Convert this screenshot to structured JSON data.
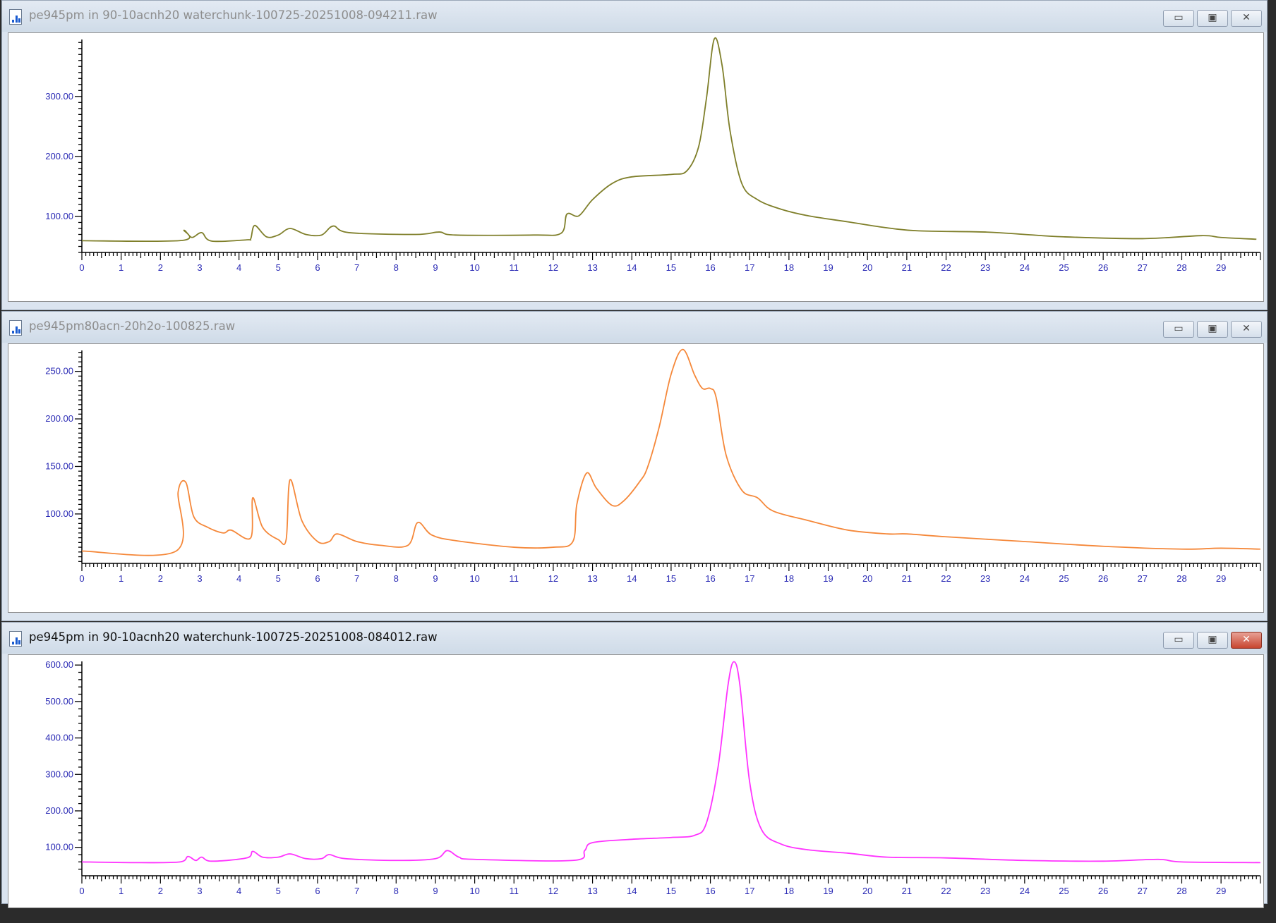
{
  "windows": [
    {
      "title": "pe945pm in 90-10acnh20 waterchunk-100725-20251008-094211.raw",
      "active": false
    },
    {
      "title": "pe945pm80acn-20h2o-100825.raw",
      "active": false
    },
    {
      "title": "pe945pm in 90-10acnh20 waterchunk-100725-20251008-084012.raw",
      "active": true
    }
  ],
  "buttons": {
    "minimize": "▭",
    "maximize": "▣",
    "close": "✕"
  },
  "colors": {
    "axis_labels": "#2b2bb5",
    "titlebar": "#dbe4ef",
    "close_active": "#c8452f"
  },
  "chart_data": [
    {
      "type": "line",
      "color": "#7f7f2a",
      "xlim": [
        0,
        30
      ],
      "ylim": [
        40,
        395
      ],
      "xticks": [
        0,
        1,
        2,
        3,
        4,
        5,
        6,
        7,
        8,
        9,
        10,
        11,
        12,
        13,
        14,
        15,
        16,
        17,
        18,
        19,
        20,
        21,
        22,
        23,
        24,
        25,
        26,
        27,
        28,
        29
      ],
      "yticks": [
        100,
        200,
        300
      ],
      "ytick_labels": [
        "100.00",
        "200.00",
        "300.00"
      ],
      "yminor": 10,
      "x": [
        0,
        2.55,
        2.6,
        2.8,
        3.05,
        3.3,
        4.2,
        4.3,
        4.4,
        4.7,
        5.0,
        5.3,
        5.7,
        6.1,
        6.4,
        6.8,
        8.5,
        9.1,
        9.5,
        11.5,
        12.2,
        12.35,
        12.65,
        13.0,
        13.5,
        14.0,
        15.0,
        15.4,
        15.7,
        15.9,
        16.1,
        16.3,
        16.5,
        16.8,
        17.2,
        17.8,
        18.5,
        19.5,
        20.5,
        21.3,
        23,
        24,
        25,
        27,
        28.5,
        29,
        29.9
      ],
      "y": [
        59.5,
        60,
        77,
        65,
        73,
        59,
        61,
        63,
        85,
        66,
        69,
        80,
        70,
        69,
        84,
        73,
        70,
        74,
        69,
        69,
        72,
        104,
        101,
        128,
        155,
        166,
        170,
        176,
        216,
        297,
        396,
        351,
        243,
        155,
        128,
        112,
        101,
        91,
        81,
        76,
        74,
        70,
        66,
        63,
        68,
        65,
        62
      ]
    },
    {
      "type": "line",
      "color": "#f5883a",
      "xlim": [
        0,
        30
      ],
      "ylim": [
        48,
        272
      ],
      "xticks": [
        0,
        1,
        2,
        3,
        4,
        5,
        6,
        7,
        8,
        9,
        10,
        11,
        12,
        13,
        14,
        15,
        16,
        17,
        18,
        19,
        20,
        21,
        22,
        23,
        24,
        25,
        26,
        27,
        28,
        29
      ],
      "yticks": [
        100,
        150,
        200,
        250
      ],
      "ytick_labels": [
        "100.00",
        "150.00",
        "200.00",
        "250.00"
      ],
      "yminor": 5,
      "x": [
        0,
        2.4,
        2.45,
        2.65,
        2.85,
        3.2,
        3.6,
        3.8,
        4.3,
        4.35,
        4.6,
        5.0,
        5.2,
        5.3,
        5.6,
        6.0,
        6.3,
        6.5,
        7.0,
        7.6,
        8.3,
        8.55,
        8.9,
        9.5,
        11,
        12.0,
        12.5,
        12.6,
        12.85,
        13.1,
        13.5,
        13.8,
        14.2,
        14.4,
        14.7,
        15.0,
        15.3,
        15.6,
        15.8,
        16.0,
        16.15,
        16.4,
        16.8,
        17.2,
        17.6,
        18.5,
        19.5,
        20.5,
        21.0,
        22,
        24,
        26,
        28,
        29,
        30
      ],
      "y": [
        61,
        61,
        123,
        133,
        97,
        86,
        80,
        83,
        75,
        117,
        86,
        73,
        73,
        136,
        93,
        71,
        71,
        79,
        71,
        67,
        67,
        91,
        78,
        72,
        65,
        65,
        71,
        110,
        143,
        127,
        109,
        114,
        134,
        149,
        192,
        247,
        273,
        246,
        232,
        232,
        222,
        162,
        125,
        117,
        103,
        93,
        83,
        79,
        79,
        76,
        71,
        66,
        63,
        64,
        63
      ]
    },
    {
      "type": "line",
      "color": "#ff33ff",
      "xlim": [
        0,
        30
      ],
      "ylim": [
        22,
        610
      ],
      "xticks": [
        0,
        1,
        2,
        3,
        4,
        5,
        6,
        7,
        8,
        9,
        10,
        11,
        12,
        13,
        14,
        15,
        16,
        17,
        18,
        19,
        20,
        21,
        22,
        23,
        24,
        25,
        26,
        27,
        28,
        29
      ],
      "yticks": [
        100,
        200,
        300,
        400,
        500,
        600
      ],
      "ytick_labels": [
        "100.00",
        "200.00",
        "300.00",
        "400.00",
        "500.00",
        "600.00"
      ],
      "yminor": 20,
      "x": [
        0,
        1.5,
        2.5,
        2.7,
        2.9,
        3.05,
        3.3,
        4.2,
        4.35,
        4.6,
        5.0,
        5.3,
        5.7,
        6.1,
        6.3,
        6.7,
        8,
        9.0,
        9.3,
        9.6,
        10,
        12.5,
        12.8,
        13.0,
        14,
        15,
        15.6,
        15.9,
        16.2,
        16.45,
        16.6,
        16.75,
        17.0,
        17.3,
        17.8,
        18.5,
        19.5,
        20.5,
        22,
        24,
        26,
        27.4,
        28,
        30
      ],
      "y": [
        60,
        58,
        60,
        75,
        64,
        73,
        62,
        71,
        89,
        73,
        73,
        82,
        69,
        69,
        80,
        69,
        64,
        69,
        91,
        73,
        67,
        64,
        91,
        113,
        122,
        127,
        133,
        167,
        323,
        546,
        609,
        546,
        279,
        149,
        109,
        93,
        84,
        73,
        71,
        64,
        62,
        67,
        60,
        58
      ]
    }
  ]
}
